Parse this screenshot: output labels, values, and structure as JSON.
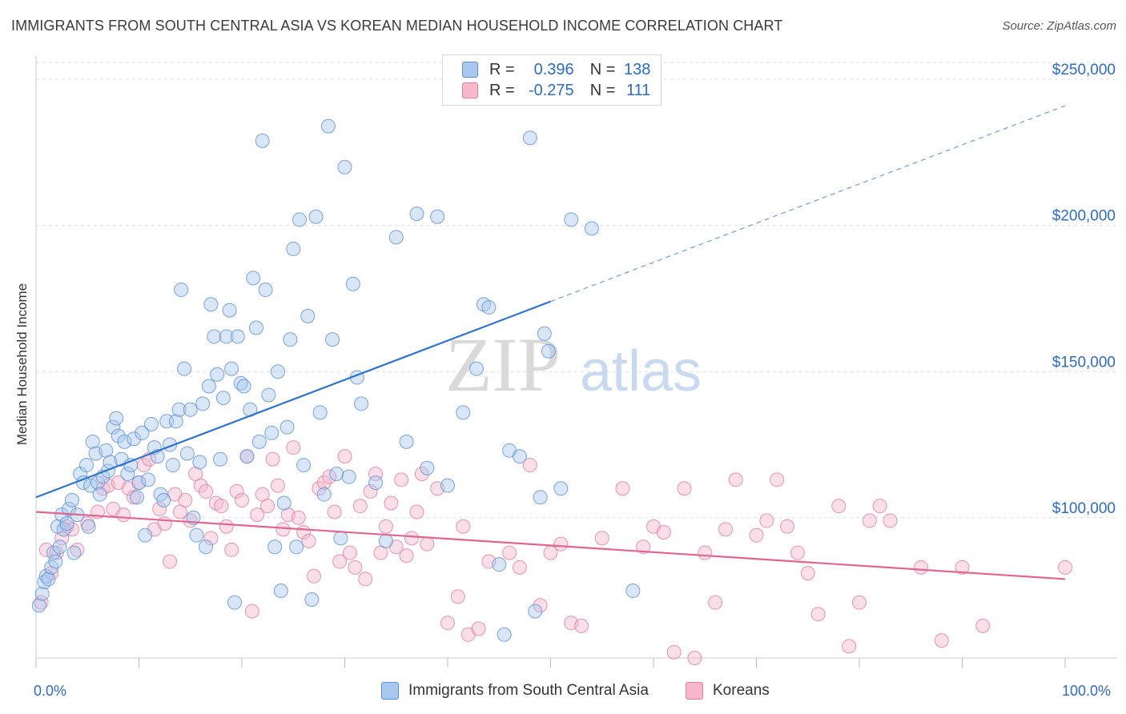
{
  "title": "IMMIGRANTS FROM SOUTH CENTRAL ASIA VS KOREAN MEDIAN HOUSEHOLD INCOME CORRELATION CHART",
  "source": "Source: ZipAtlas.com",
  "watermark": {
    "zip": "ZIP",
    "atlas": "atlas"
  },
  "legend_top": {
    "rows": [
      {
        "r_label": "R =",
        "r_value": "0.396",
        "n_label": "N =",
        "n_value": "138"
      },
      {
        "r_label": "R =",
        "r_value": "-0.275",
        "n_label": "N =",
        "n_value": "111"
      }
    ]
  },
  "legend_bottom": {
    "series1": "Immigrants from South Central Asia",
    "series2": "Koreans"
  },
  "x_axis": {
    "min_label": "0.0%",
    "max_label": "100.0%"
  },
  "colors": {
    "blue_fill": "#a9c8ef",
    "blue_stroke": "#5b8fd6",
    "blue_line": "#2e73cc",
    "pink_fill": "#f7b8cc",
    "pink_stroke": "#e07ca0",
    "pink_line": "#e0658f",
    "axis_text": "#2d6cc0",
    "grid": "#dddddd"
  },
  "chart_data": {
    "type": "scatter",
    "title": "IMMIGRANTS FROM SOUTH CENTRAL ASIA VS KOREAN MEDIAN HOUSEHOLD INCOME CORRELATION CHART",
    "xlabel": "",
    "ylabel": "Median Household Income",
    "xlim": [
      0,
      100
    ],
    "ylim": [
      52000,
      258000
    ],
    "y_ticks": [
      {
        "value": 100000,
        "label": "$100,000"
      },
      {
        "value": 150000,
        "label": "$150,000"
      },
      {
        "value": 200000,
        "label": "$200,000"
      },
      {
        "value": 250000,
        "label": "$250,000"
      }
    ],
    "grid": true,
    "legend_placement": "top-center",
    "series": [
      {
        "name": "Immigrants from South Central Asia",
        "r": 0.396,
        "n": 138,
        "trend": {
          "x0": 0,
          "y0": 107000,
          "x1": 50,
          "y1": 174000,
          "dashed_to_x": 100,
          "dashed_to_y": 241000
        },
        "points": [
          [
            0.3,
            70000
          ],
          [
            0.6,
            74000
          ],
          [
            0.8,
            78000
          ],
          [
            1.0,
            80000
          ],
          [
            1.2,
            79000
          ],
          [
            1.5,
            83000
          ],
          [
            1.7,
            88000
          ],
          [
            1.9,
            85000
          ],
          [
            2.1,
            97000
          ],
          [
            2.3,
            90000
          ],
          [
            2.5,
            101000
          ],
          [
            2.7,
            96000
          ],
          [
            3.0,
            98000
          ],
          [
            3.2,
            103000
          ],
          [
            3.5,
            106000
          ],
          [
            3.7,
            88000
          ],
          [
            4.0,
            101000
          ],
          [
            4.3,
            115000
          ],
          [
            4.6,
            112000
          ],
          [
            4.9,
            118000
          ],
          [
            5.1,
            97000
          ],
          [
            5.3,
            111000
          ],
          [
            5.5,
            126000
          ],
          [
            5.8,
            122000
          ],
          [
            6.0,
            112000
          ],
          [
            6.2,
            108000
          ],
          [
            6.5,
            114000
          ],
          [
            6.8,
            123000
          ],
          [
            7.0,
            116000
          ],
          [
            7.2,
            119000
          ],
          [
            7.5,
            131000
          ],
          [
            7.8,
            134000
          ],
          [
            8.0,
            128000
          ],
          [
            8.3,
            120000
          ],
          [
            8.6,
            126000
          ],
          [
            8.9,
            115000
          ],
          [
            9.2,
            118000
          ],
          [
            9.5,
            127000
          ],
          [
            9.8,
            107000
          ],
          [
            10.0,
            112000
          ],
          [
            10.3,
            129000
          ],
          [
            10.6,
            94000
          ],
          [
            10.9,
            113000
          ],
          [
            11.2,
            132000
          ],
          [
            11.5,
            124000
          ],
          [
            11.8,
            121000
          ],
          [
            12.1,
            108000
          ],
          [
            12.4,
            106000
          ],
          [
            12.7,
            133000
          ],
          [
            13.0,
            125000
          ],
          [
            13.3,
            118000
          ],
          [
            13.6,
            133000
          ],
          [
            13.9,
            137000
          ],
          [
            14.1,
            178000
          ],
          [
            14.4,
            151000
          ],
          [
            14.7,
            122000
          ],
          [
            15.0,
            137000
          ],
          [
            15.3,
            100000
          ],
          [
            15.6,
            94000
          ],
          [
            15.9,
            119000
          ],
          [
            16.2,
            139000
          ],
          [
            16.5,
            90000
          ],
          [
            16.8,
            145000
          ],
          [
            17.0,
            173000
          ],
          [
            17.3,
            162000
          ],
          [
            17.6,
            149000
          ],
          [
            17.9,
            120000
          ],
          [
            18.2,
            141000
          ],
          [
            18.5,
            162000
          ],
          [
            18.8,
            171000
          ],
          [
            19.0,
            151000
          ],
          [
            19.3,
            71000
          ],
          [
            19.6,
            162000
          ],
          [
            19.9,
            146000
          ],
          [
            20.2,
            145000
          ],
          [
            20.5,
            121000
          ],
          [
            20.8,
            137000
          ],
          [
            21.1,
            182000
          ],
          [
            21.4,
            165000
          ],
          [
            21.7,
            126000
          ],
          [
            22.0,
            229000
          ],
          [
            22.3,
            178000
          ],
          [
            22.6,
            142000
          ],
          [
            22.9,
            129000
          ],
          [
            23.2,
            90000
          ],
          [
            23.5,
            150000
          ],
          [
            23.8,
            75000
          ],
          [
            24.1,
            105000
          ],
          [
            24.4,
            131000
          ],
          [
            24.7,
            161000
          ],
          [
            25.0,
            192000
          ],
          [
            25.3,
            90000
          ],
          [
            25.6,
            202000
          ],
          [
            26.0,
            118000
          ],
          [
            26.4,
            169000
          ],
          [
            26.8,
            72000
          ],
          [
            27.2,
            203000
          ],
          [
            27.6,
            136000
          ],
          [
            28.0,
            108000
          ],
          [
            28.4,
            234000
          ],
          [
            28.8,
            161000
          ],
          [
            29.2,
            115000
          ],
          [
            29.6,
            93000
          ],
          [
            30.0,
            220000
          ],
          [
            30.4,
            114000
          ],
          [
            30.8,
            180000
          ],
          [
            31.2,
            148000
          ],
          [
            31.6,
            139000
          ],
          [
            33.0,
            112000
          ],
          [
            34.0,
            92000
          ],
          [
            35.0,
            196000
          ],
          [
            36.0,
            126000
          ],
          [
            37.0,
            204000
          ],
          [
            38.0,
            117000
          ],
          [
            39.0,
            203000
          ],
          [
            40.0,
            111000
          ],
          [
            41.5,
            136000
          ],
          [
            42.8,
            151000
          ],
          [
            43.5,
            173000
          ],
          [
            44.0,
            172000
          ],
          [
            45.0,
            84000
          ],
          [
            45.5,
            60000
          ],
          [
            46.0,
            123000
          ],
          [
            47.0,
            121000
          ],
          [
            48.0,
            230000
          ],
          [
            48.5,
            68000
          ],
          [
            49.0,
            107000
          ],
          [
            49.4,
            163000
          ],
          [
            49.8,
            157000
          ],
          [
            51.0,
            110000
          ],
          [
            52.0,
            202000
          ],
          [
            54.0,
            199000
          ],
          [
            58.0,
            75000
          ]
        ]
      },
      {
        "name": "Koreans",
        "r": -0.275,
        "n": 111,
        "trend": {
          "x0": 0,
          "y0": 102000,
          "x1": 100,
          "y1": 79000
        },
        "points": [
          [
            0.5,
            71000
          ],
          [
            1.0,
            89000
          ],
          [
            1.5,
            81000
          ],
          [
            2.0,
            88000
          ],
          [
            2.5,
            93000
          ],
          [
            3.0,
            97000
          ],
          [
            3.5,
            96000
          ],
          [
            4.0,
            89000
          ],
          [
            5.0,
            98000
          ],
          [
            6.0,
            102000
          ],
          [
            6.5,
            110000
          ],
          [
            7.0,
            111000
          ],
          [
            7.5,
            103000
          ],
          [
            8.0,
            112000
          ],
          [
            8.5,
            101000
          ],
          [
            9.0,
            110000
          ],
          [
            9.5,
            107000
          ],
          [
            10.0,
            112000
          ],
          [
            10.5,
            118000
          ],
          [
            11.0,
            120000
          ],
          [
            11.5,
            96000
          ],
          [
            12.0,
            103000
          ],
          [
            12.5,
            98000
          ],
          [
            13.0,
            85000
          ],
          [
            13.5,
            108000
          ],
          [
            14.0,
            102000
          ],
          [
            14.5,
            106000
          ],
          [
            15.0,
            99000
          ],
          [
            15.5,
            115000
          ],
          [
            16.0,
            111000
          ],
          [
            16.5,
            109000
          ],
          [
            17.0,
            93000
          ],
          [
            17.5,
            105000
          ],
          [
            18.0,
            104000
          ],
          [
            18.5,
            97000
          ],
          [
            19.0,
            89000
          ],
          [
            19.5,
            109000
          ],
          [
            20.0,
            106000
          ],
          [
            20.5,
            121000
          ],
          [
            21.0,
            68000
          ],
          [
            21.5,
            101000
          ],
          [
            22.0,
            108000
          ],
          [
            22.5,
            104000
          ],
          [
            23.0,
            120000
          ],
          [
            23.5,
            111000
          ],
          [
            24.0,
            96000
          ],
          [
            24.5,
            101000
          ],
          [
            25.0,
            124000
          ],
          [
            25.5,
            100000
          ],
          [
            26.0,
            95000
          ],
          [
            26.5,
            92000
          ],
          [
            27.0,
            80000
          ],
          [
            27.5,
            110000
          ],
          [
            28.0,
            112000
          ],
          [
            28.5,
            114000
          ],
          [
            29.0,
            102000
          ],
          [
            29.5,
            85000
          ],
          [
            30.0,
            121000
          ],
          [
            30.5,
            88000
          ],
          [
            31.0,
            83000
          ],
          [
            31.5,
            104000
          ],
          [
            32.0,
            79000
          ],
          [
            32.5,
            109000
          ],
          [
            33.0,
            115000
          ],
          [
            33.5,
            88000
          ],
          [
            34.0,
            97000
          ],
          [
            34.5,
            105000
          ],
          [
            35.0,
            90000
          ],
          [
            35.5,
            113000
          ],
          [
            36.0,
            87000
          ],
          [
            36.5,
            93000
          ],
          [
            37.0,
            102000
          ],
          [
            37.5,
            115000
          ],
          [
            38.0,
            91000
          ],
          [
            39.0,
            110000
          ],
          [
            40.0,
            64000
          ],
          [
            41.0,
            73000
          ],
          [
            41.5,
            97000
          ],
          [
            42.0,
            60000
          ],
          [
            43.0,
            62000
          ],
          [
            44.0,
            85000
          ],
          [
            46.0,
            88000
          ],
          [
            47.0,
            83000
          ],
          [
            48.0,
            118000
          ],
          [
            49.0,
            70000
          ],
          [
            50.0,
            88000
          ],
          [
            51.0,
            91000
          ],
          [
            52.0,
            64000
          ],
          [
            53.0,
            63000
          ],
          [
            55.0,
            93000
          ],
          [
            57.0,
            110000
          ],
          [
            59.0,
            90000
          ],
          [
            60.0,
            97000
          ],
          [
            61.0,
            95000
          ],
          [
            62.0,
            54000
          ],
          [
            63.0,
            110000
          ],
          [
            64.0,
            52000
          ],
          [
            65.0,
            88000
          ],
          [
            66.0,
            71000
          ],
          [
            67.0,
            96000
          ],
          [
            68.0,
            113000
          ],
          [
            70.0,
            94000
          ],
          [
            71.0,
            99000
          ],
          [
            72.0,
            113000
          ],
          [
            73.0,
            97000
          ],
          [
            74.0,
            88000
          ],
          [
            75.0,
            81000
          ],
          [
            76.0,
            67000
          ],
          [
            78.0,
            104000
          ],
          [
            79.0,
            56000
          ],
          [
            80.0,
            71000
          ],
          [
            81.0,
            99000
          ],
          [
            82.0,
            104000
          ],
          [
            83.0,
            99000
          ],
          [
            86.0,
            83000
          ],
          [
            88.0,
            58000
          ],
          [
            90.0,
            83000
          ],
          [
            92.0,
            63000
          ],
          [
            100.0,
            83000
          ]
        ]
      }
    ]
  }
}
